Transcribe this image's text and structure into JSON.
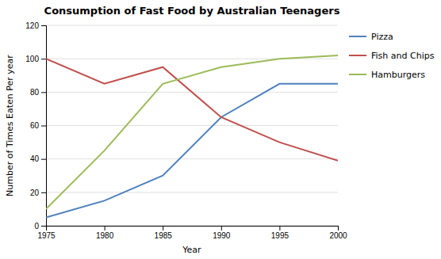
{
  "chart_data": {
    "type": "line",
    "title": "Consumption of Fast Food by Australian Teenagers",
    "xlabel": "Year",
    "ylabel": "Number of Times Eaten Per year",
    "x": [
      1975,
      1980,
      1985,
      1990,
      1995,
      2000
    ],
    "series": [
      {
        "name": "Pizza",
        "color": "#4f81bd",
        "values": [
          5,
          15,
          30,
          65,
          85,
          85
        ]
      },
      {
        "name": "Fish and Chips",
        "color": "#c0504d",
        "values": [
          100,
          85,
          95,
          65,
          50,
          39
        ]
      },
      {
        "name": "Hamburgers",
        "color": "#9bbb59",
        "values": [
          10,
          45,
          85,
          95,
          100,
          102
        ]
      }
    ],
    "xlim": [
      1975,
      2000
    ],
    "xticks": [
      1975,
      1980,
      1985,
      1990,
      1995,
      2000
    ],
    "ylim": [
      0,
      120
    ],
    "yticks": [
      0,
      20,
      40,
      60,
      80,
      100,
      120
    ],
    "grid": true,
    "legend": "right"
  }
}
